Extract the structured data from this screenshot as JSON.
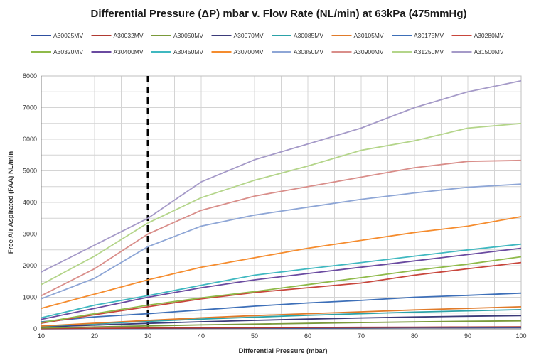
{
  "chart_data": {
    "type": "line",
    "title": "Differential Pressure (ΔP) mbar v. Flow Rate (NL/min) at 63kPa (475mmHg)",
    "xlabel": "Differential Pressure (mbar)",
    "ylabel": "Free Air Aspirated (FAA) NL/min",
    "xlim": [
      10,
      100
    ],
    "ylim": [
      0,
      8000
    ],
    "x": [
      10,
      20,
      30,
      40,
      50,
      60,
      70,
      80,
      90,
      100
    ],
    "x_ticks": [
      "10",
      "20",
      "30",
      "40",
      "50",
      "60",
      "70",
      "80",
      "90",
      "100"
    ],
    "y_ticks": [
      "0",
      "1000",
      "2000",
      "3000",
      "4000",
      "5000",
      "6000",
      "7000",
      "8000"
    ],
    "grid": true,
    "legend_position": "top",
    "reference_line": {
      "x": 30,
      "style": "dashed",
      "color": "#000000"
    },
    "series": [
      {
        "name": "A30025MV",
        "color": "#2e4fa0",
        "values": [
          5,
          10,
          15,
          20,
          24,
          28,
          32,
          35,
          38,
          40
        ]
      },
      {
        "name": "A30032MV",
        "color": "#b03a32",
        "values": [
          10,
          18,
          25,
          32,
          38,
          44,
          49,
          54,
          58,
          62
        ]
      },
      {
        "name": "A30050MV",
        "color": "#7a9a3a",
        "values": [
          30,
          60,
          95,
          125,
          150,
          175,
          200,
          220,
          240,
          255
        ]
      },
      {
        "name": "A30070MV",
        "color": "#3b3b7a",
        "values": [
          60,
          120,
          175,
          225,
          270,
          310,
          345,
          375,
          400,
          420
        ]
      },
      {
        "name": "A30085MV",
        "color": "#2ba2a8",
        "values": [
          80,
          160,
          240,
          310,
          370,
          430,
          480,
          530,
          570,
          610
        ]
      },
      {
        "name": "A30105MV",
        "color": "#e07b2a",
        "values": [
          90,
          180,
          270,
          350,
          420,
          480,
          540,
          600,
          650,
          700
        ]
      },
      {
        "name": "A30175MV",
        "color": "#3d6fb8",
        "values": [
          220,
          380,
          480,
          600,
          720,
          820,
          900,
          1000,
          1060,
          1130
        ]
      },
      {
        "name": "A30280MV",
        "color": "#c8463c",
        "values": [
          180,
          450,
          700,
          950,
          1150,
          1300,
          1450,
          1700,
          1900,
          2100
        ]
      },
      {
        "name": "A30320MV",
        "color": "#8fba4a",
        "values": [
          200,
          480,
          750,
          980,
          1180,
          1400,
          1620,
          1850,
          2050,
          2280
        ]
      },
      {
        "name": "A30400MV",
        "color": "#6a4aa0",
        "values": [
          300,
          650,
          1000,
          1300,
          1550,
          1750,
          1950,
          2150,
          2350,
          2550
        ]
      },
      {
        "name": "A30450MV",
        "color": "#3fb8c0",
        "values": [
          350,
          750,
          1050,
          1380,
          1700,
          1900,
          2100,
          2300,
          2500,
          2680
        ]
      },
      {
        "name": "A30700MV",
        "color": "#f58c2e",
        "values": [
          650,
          1100,
          1550,
          1950,
          2250,
          2550,
          2800,
          3050,
          3250,
          3550
        ]
      },
      {
        "name": "A30850MV",
        "color": "#8ea6d6",
        "values": [
          950,
          1600,
          2600,
          3250,
          3600,
          3850,
          4100,
          4300,
          4480,
          4580
        ]
      },
      {
        "name": "A30900MV",
        "color": "#d98e8a",
        "values": [
          1050,
          1900,
          3000,
          3750,
          4200,
          4500,
          4800,
          5100,
          5300,
          5330
        ]
      },
      {
        "name": "A31250MV",
        "color": "#b4d58a",
        "values": [
          1400,
          2300,
          3350,
          4150,
          4700,
          5150,
          5650,
          5950,
          6350,
          6500
        ]
      },
      {
        "name": "A31500MV",
        "color": "#a59ac8",
        "values": [
          1800,
          2650,
          3500,
          4650,
          5350,
          5850,
          6350,
          7000,
          7500,
          7850
        ]
      }
    ]
  }
}
